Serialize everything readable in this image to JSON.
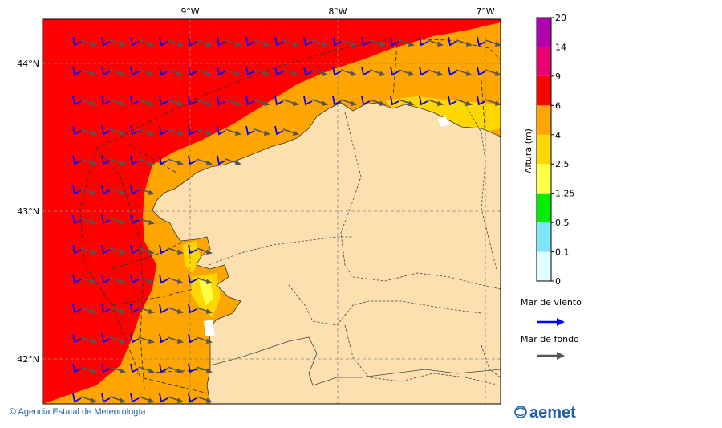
{
  "map": {
    "lon_labels": [
      "9°W",
      "8°W",
      "7°W"
    ],
    "lat_labels": [
      "44°N",
      "43°N",
      "42°N"
    ]
  },
  "colorbar": {
    "title": "Altura (m)",
    "levels": [
      "0",
      "0.1",
      "0.5",
      "1.25",
      "2.5",
      "4",
      "6",
      "9",
      "14",
      "20"
    ],
    "colors": [
      "#e0ffff",
      "#80e5ff",
      "#00ee00",
      "#ffff44",
      "#ffd700",
      "#ffa500",
      "#ff0000",
      "#e8006e",
      "#b000b0"
    ]
  },
  "legend": {
    "wind_sea_label": "Mar de viento",
    "swell_label": "Mar de fondo",
    "wind_sea_color": "#0000ff",
    "swell_color": "#555555"
  },
  "footer": {
    "copyright": "© Agencia Estatal de Meteorología",
    "logo_text": "aemet"
  },
  "colors": {
    "land": "#fde0b0",
    "sea_red": "#ff0000",
    "sea_orange": "#ffa500",
    "sea_yellow": "#ffd700",
    "sea_lightyellow": "#ffff44"
  }
}
